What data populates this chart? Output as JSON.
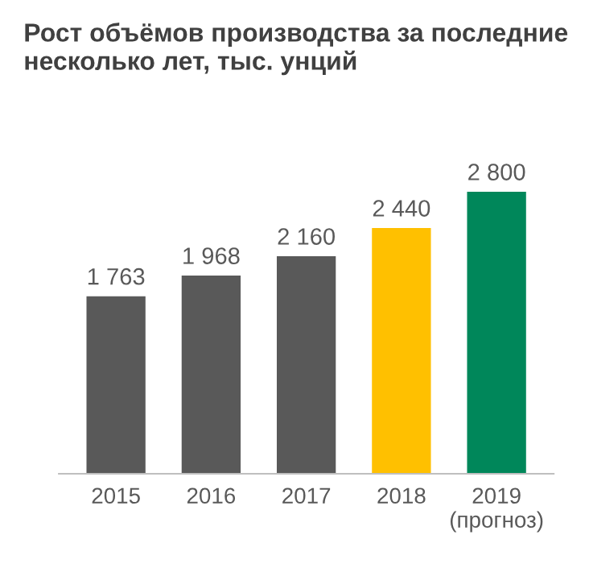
{
  "chart_data": {
    "type": "bar",
    "title": "Рост объёмов производства за последние несколько лет, тыс. унций",
    "categories": [
      "2015",
      "2016",
      "2017",
      "2018",
      "2019\n(прогноз)"
    ],
    "values": [
      1763,
      1968,
      2160,
      2440,
      2800
    ],
    "colors": [
      "#595959",
      "#595959",
      "#595959",
      "#ffc000",
      "#00875a"
    ],
    "value_labels": [
      "1 763",
      "1 968",
      "2 160",
      "2 440",
      "2 800"
    ],
    "grid": false,
    "legend": false
  }
}
